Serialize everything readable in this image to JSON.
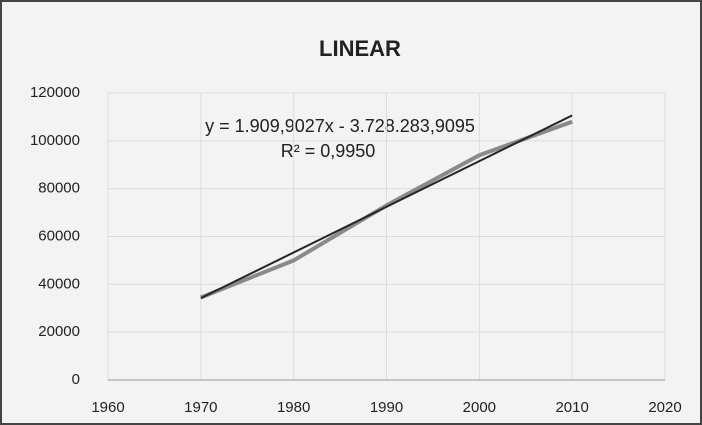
{
  "chart_data": {
    "type": "line",
    "title": "LINEAR",
    "annotations": [
      "y = 1.909,9027x - 3.728.283,9095",
      "R² = 0,9950"
    ],
    "series": [
      {
        "color": "#8a8a8a",
        "x": [
          1970,
          1980,
          1990,
          2000,
          2010
        ],
        "values": [
          34500,
          50000,
          73000,
          94000,
          108000
        ]
      },
      {
        "color": "#262626",
        "x": [
          1970,
          2010
        ],
        "values": [
          34224,
          110620
        ]
      }
    ],
    "xlim": [
      1960,
      2020
    ],
    "xticks": [
      1960,
      1970,
      1980,
      1990,
      2000,
      2010,
      2020
    ],
    "ylim": [
      0,
      120000
    ],
    "yticks": [
      0,
      20000,
      40000,
      60000,
      80000,
      100000,
      120000
    ],
    "grid": true
  }
}
